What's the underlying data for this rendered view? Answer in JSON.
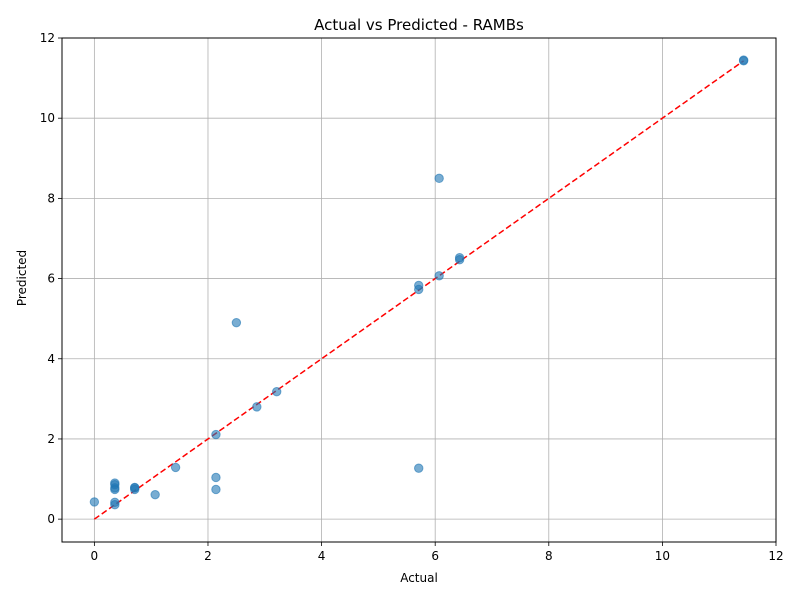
{
  "chart_data": {
    "type": "scatter",
    "title": "Actual vs Predicted - RAMBs",
    "xlabel": "Actual",
    "ylabel": "Predicted",
    "xlim": [
      -0.57,
      12
    ],
    "ylim": [
      -0.57,
      12
    ],
    "xticks": [
      0,
      2,
      4,
      6,
      8,
      10,
      12
    ],
    "yticks": [
      0,
      2,
      4,
      6,
      8,
      10,
      12
    ],
    "grid": true,
    "colors": {
      "points": "#1f77b4",
      "reference_line": "#ff0000"
    },
    "reference_line": {
      "style": "dashed",
      "from": [
        0,
        0
      ],
      "to": [
        11.43,
        11.43
      ]
    },
    "points": [
      {
        "x": 0.0,
        "y": 0.43
      },
      {
        "x": 0.36,
        "y": 0.36
      },
      {
        "x": 0.36,
        "y": 0.42
      },
      {
        "x": 0.36,
        "y": 0.74
      },
      {
        "x": 0.36,
        "y": 0.78
      },
      {
        "x": 0.36,
        "y": 0.86
      },
      {
        "x": 0.36,
        "y": 0.9
      },
      {
        "x": 0.71,
        "y": 0.74
      },
      {
        "x": 0.71,
        "y": 0.78
      },
      {
        "x": 0.71,
        "y": 0.79
      },
      {
        "x": 1.07,
        "y": 0.61
      },
      {
        "x": 1.43,
        "y": 1.29
      },
      {
        "x": 2.14,
        "y": 0.74
      },
      {
        "x": 2.14,
        "y": 1.04
      },
      {
        "x": 2.14,
        "y": 2.11
      },
      {
        "x": 2.5,
        "y": 4.9
      },
      {
        "x": 2.86,
        "y": 2.8
      },
      {
        "x": 3.21,
        "y": 3.18
      },
      {
        "x": 5.71,
        "y": 1.27
      },
      {
        "x": 5.71,
        "y": 5.73
      },
      {
        "x": 5.71,
        "y": 5.83
      },
      {
        "x": 6.07,
        "y": 6.07
      },
      {
        "x": 6.07,
        "y": 8.5
      },
      {
        "x": 6.43,
        "y": 6.47
      },
      {
        "x": 6.43,
        "y": 6.52
      },
      {
        "x": 11.43,
        "y": 11.43
      },
      {
        "x": 11.43,
        "y": 11.45
      }
    ]
  }
}
